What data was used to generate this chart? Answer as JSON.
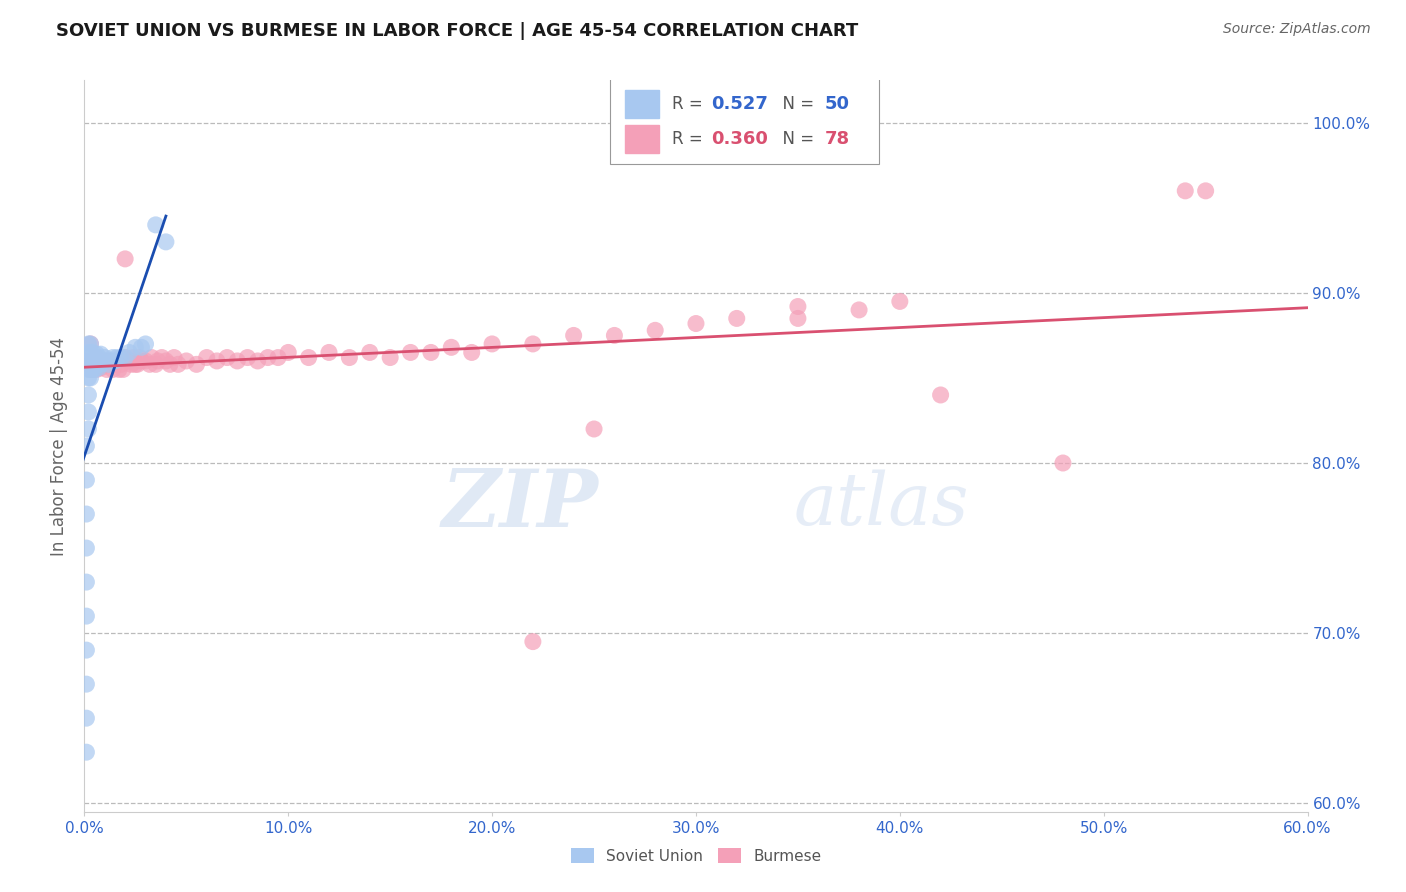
{
  "title": "SOVIET UNION VS BURMESE IN LABOR FORCE | AGE 45-54 CORRELATION CHART",
  "source": "Source: ZipAtlas.com",
  "ylabel": "In Labor Force | Age 45-54",
  "xlim": [
    0.0,
    0.6
  ],
  "ylim": [
    0.595,
    1.025
  ],
  "soviet_R": 0.527,
  "soviet_N": 50,
  "burmese_R": 0.36,
  "burmese_N": 78,
  "soviet_color": "#a8c8f0",
  "burmese_color": "#f4a0b8",
  "soviet_line_color": "#1a4db0",
  "burmese_line_color": "#d95070",
  "watermark": "ZIPatlas",
  "background_color": "#ffffff",
  "grid_color": "#bbbbbb",
  "soviet_scatter_x": [
    0.001,
    0.001,
    0.001,
    0.001,
    0.001,
    0.001,
    0.001,
    0.001,
    0.001,
    0.001,
    0.002,
    0.002,
    0.002,
    0.002,
    0.002,
    0.002,
    0.002,
    0.002,
    0.003,
    0.003,
    0.003,
    0.003,
    0.003,
    0.004,
    0.004,
    0.004,
    0.005,
    0.005,
    0.006,
    0.006,
    0.007,
    0.007,
    0.008,
    0.008,
    0.009,
    0.01,
    0.011,
    0.012,
    0.013,
    0.014,
    0.015,
    0.016,
    0.018,
    0.02,
    0.022,
    0.025,
    0.028,
    0.03,
    0.035,
    0.04
  ],
  "soviet_scatter_y": [
    0.63,
    0.65,
    0.67,
    0.69,
    0.71,
    0.73,
    0.75,
    0.77,
    0.79,
    0.81,
    0.82,
    0.83,
    0.84,
    0.85,
    0.855,
    0.86,
    0.865,
    0.87,
    0.85,
    0.855,
    0.86,
    0.865,
    0.87,
    0.855,
    0.86,
    0.865,
    0.855,
    0.862,
    0.858,
    0.864,
    0.856,
    0.862,
    0.858,
    0.864,
    0.86,
    0.862,
    0.86,
    0.858,
    0.86,
    0.862,
    0.86,
    0.862,
    0.862,
    0.862,
    0.865,
    0.868,
    0.868,
    0.87,
    0.94,
    0.93
  ],
  "burmese_scatter_x": [
    0.001,
    0.002,
    0.003,
    0.003,
    0.004,
    0.004,
    0.005,
    0.006,
    0.006,
    0.007,
    0.008,
    0.009,
    0.01,
    0.011,
    0.012,
    0.013,
    0.014,
    0.015,
    0.016,
    0.017,
    0.018,
    0.019,
    0.02,
    0.022,
    0.023,
    0.024,
    0.025,
    0.026,
    0.027,
    0.028,
    0.03,
    0.032,
    0.033,
    0.035,
    0.036,
    0.038,
    0.04,
    0.042,
    0.044,
    0.046,
    0.05,
    0.055,
    0.06,
    0.065,
    0.07,
    0.075,
    0.08,
    0.085,
    0.09,
    0.095,
    0.1,
    0.11,
    0.12,
    0.13,
    0.14,
    0.15,
    0.16,
    0.17,
    0.18,
    0.19,
    0.2,
    0.22,
    0.24,
    0.26,
    0.28,
    0.3,
    0.32,
    0.35,
    0.38,
    0.4,
    0.25,
    0.35,
    0.42,
    0.48,
    0.54,
    0.55,
    0.02,
    0.22
  ],
  "burmese_scatter_y": [
    0.86,
    0.858,
    0.87,
    0.855,
    0.855,
    0.86,
    0.858,
    0.855,
    0.862,
    0.858,
    0.856,
    0.86,
    0.858,
    0.855,
    0.86,
    0.858,
    0.855,
    0.858,
    0.86,
    0.855,
    0.858,
    0.855,
    0.862,
    0.86,
    0.858,
    0.862,
    0.858,
    0.858,
    0.862,
    0.86,
    0.86,
    0.858,
    0.862,
    0.858,
    0.86,
    0.862,
    0.86,
    0.858,
    0.862,
    0.858,
    0.86,
    0.858,
    0.862,
    0.86,
    0.862,
    0.86,
    0.862,
    0.86,
    0.862,
    0.862,
    0.865,
    0.862,
    0.865,
    0.862,
    0.865,
    0.862,
    0.865,
    0.865,
    0.868,
    0.865,
    0.87,
    0.87,
    0.875,
    0.875,
    0.878,
    0.882,
    0.885,
    0.892,
    0.89,
    0.895,
    0.82,
    0.885,
    0.84,
    0.8,
    0.96,
    0.96,
    0.92,
    0.695
  ],
  "y_tick_vals": [
    0.6,
    0.7,
    0.8,
    0.9,
    1.0
  ],
  "y_tick_labels": [
    "60.0%",
    "70.0%",
    "80.0%",
    "90.0%",
    "100.0%"
  ],
  "x_tick_vals": [
    0.0,
    0.1,
    0.2,
    0.3,
    0.4,
    0.5,
    0.6
  ],
  "x_tick_labels": [
    "0.0%",
    "10.0%",
    "20.0%",
    "30.0%",
    "40.0%",
    "50.0%",
    "60.0%"
  ]
}
